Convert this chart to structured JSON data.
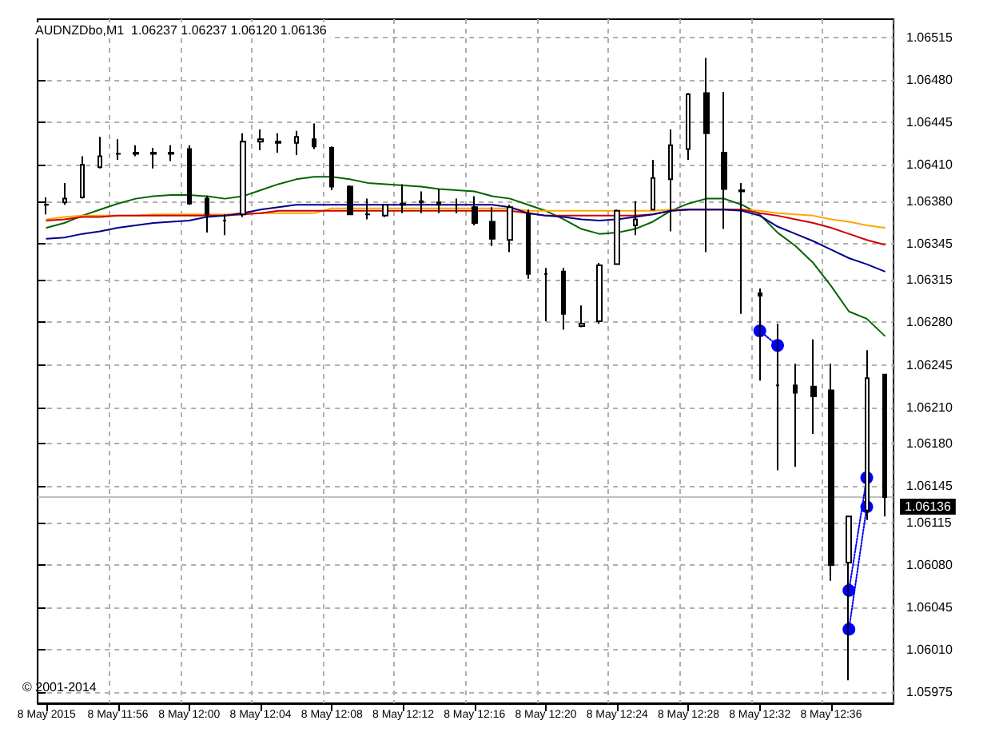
{
  "chart_data": {
    "type": "candlestick",
    "title": "AUDNZDbo,M1  1.06237 1.06237 1.06120 1.06136",
    "annotations": [
      "© 2001-2014"
    ],
    "categories": [
      "8 May 2015",
      null,
      null,
      null,
      "8 May 11:56",
      null,
      null,
      null,
      "8 May 12:00",
      null,
      null,
      null,
      "8 May 12:04",
      null,
      null,
      null,
      "8 May 12:08",
      null,
      null,
      null,
      "8 May 12:12",
      null,
      null,
      null,
      "8 May 12:16",
      null,
      null,
      null,
      "8 May 12:20",
      null,
      null,
      null,
      "8 May 12:24",
      null,
      null,
      null,
      "8 May 12:28",
      null,
      null,
      null,
      "8 May 12:32",
      null,
      null,
      null,
      "8 May 12:36",
      null,
      null,
      null
    ],
    "ohlc": [
      [
        1.06377,
        1.06383,
        1.06369,
        1.06377
      ],
      [
        1.06379,
        1.06395,
        1.06377,
        1.06382
      ],
      [
        1.06383,
        1.06417,
        1.06382,
        1.0641
      ],
      [
        1.06408,
        1.06433,
        1.06407,
        1.06417
      ],
      [
        1.06419,
        1.06431,
        1.06414,
        1.06419
      ],
      [
        1.06419,
        1.06426,
        1.06417,
        1.0642
      ],
      [
        1.06419,
        1.06424,
        1.06407,
        1.0642
      ],
      [
        1.06419,
        1.06426,
        1.06413,
        1.0642
      ],
      [
        1.06423,
        1.06426,
        1.06377,
        1.06378
      ],
      [
        1.06382,
        1.06384,
        1.06354,
        1.06369
      ],
      [
        1.06364,
        1.06369,
        1.06352,
        1.06364
      ],
      [
        1.06369,
        1.06436,
        1.06367,
        1.06429
      ],
      [
        1.06429,
        1.06439,
        1.06422,
        1.06431
      ],
      [
        1.06429,
        1.06436,
        1.0642,
        1.06428
      ],
      [
        1.06428,
        1.06438,
        1.06418,
        1.06433
      ],
      [
        1.06431,
        1.06444,
        1.06423,
        1.06425
      ],
      [
        1.06424,
        1.06425,
        1.06389,
        1.06392
      ],
      [
        1.06392,
        1.06393,
        1.06369,
        1.06369
      ],
      [
        1.06369,
        1.06382,
        1.06365,
        1.06369
      ],
      [
        1.06368,
        1.06377,
        1.06367,
        1.06377
      ],
      [
        1.06377,
        1.06394,
        1.0637,
        1.06378
      ],
      [
        1.06379,
        1.06388,
        1.0637,
        1.0638
      ],
      [
        1.06379,
        1.0639,
        1.0637,
        1.06377
      ],
      [
        1.06377,
        1.06382,
        1.0637,
        1.06377
      ],
      [
        1.06375,
        1.06384,
        1.0636,
        1.06362
      ],
      [
        1.06363,
        1.06375,
        1.06343,
        1.06349
      ],
      [
        1.06348,
        1.06377,
        1.06338,
        1.06375
      ],
      [
        1.0637,
        1.06373,
        1.06316,
        1.0632
      ],
      [
        1.0632,
        1.06325,
        1.06281,
        1.0632
      ],
      [
        1.06322,
        1.06325,
        1.06274,
        1.06287
      ],
      [
        1.06277,
        1.06294,
        1.06276,
        1.06279
      ],
      [
        1.06281,
        1.06329,
        1.06279,
        1.06327
      ],
      [
        1.06328,
        1.06373,
        1.06328,
        1.06372
      ],
      [
        1.0636,
        1.0638,
        1.06352,
        1.06365
      ],
      [
        1.06373,
        1.06414,
        1.06373,
        1.06399
      ],
      [
        1.06398,
        1.06439,
        1.06355,
        1.06426
      ],
      [
        1.06423,
        1.06469,
        1.06414,
        1.06468
      ],
      [
        1.06469,
        1.06498,
        1.06338,
        1.06436
      ],
      [
        1.0642,
        1.0647,
        1.06357,
        1.0639
      ],
      [
        1.06388,
        1.06395,
        1.06287,
        1.06389
      ],
      [
        1.06304,
        1.06308,
        1.06232,
        1.06302
      ],
      [
        1.06228,
        1.06279,
        1.06158,
        1.06228
      ],
      [
        1.06228,
        1.06246,
        1.06161,
        1.06222
      ],
      [
        1.06227,
        1.06266,
        1.06188,
        1.06219
      ],
      [
        1.06224,
        1.06246,
        1.06067,
        1.0608
      ],
      [
        1.06082,
        1.0612,
        1.05985,
        1.0612
      ],
      [
        1.06125,
        1.06257,
        1.06117,
        1.06234
      ],
      [
        1.06237,
        1.06237,
        1.0612,
        1.06136
      ]
    ],
    "series": [
      {
        "type": "line",
        "color": "#006400",
        "values": [
          1.06358,
          1.06362,
          1.06368,
          1.06373,
          1.06378,
          1.06382,
          1.06384,
          1.06385,
          1.06385,
          1.06384,
          1.06382,
          1.06384,
          1.06389,
          1.06394,
          1.06398,
          1.064,
          1.064,
          1.06398,
          1.06395,
          1.06394,
          1.06393,
          1.06392,
          1.0639,
          1.06389,
          1.06388,
          1.06384,
          1.06382,
          1.06377,
          1.06372,
          1.06365,
          1.06357,
          1.06353,
          1.06354,
          1.06357,
          1.06363,
          1.06372,
          1.06378,
          1.06382,
          1.06382,
          1.06377,
          1.06369,
          1.06354,
          1.06343,
          1.06329,
          1.0631,
          1.06289,
          1.06283,
          1.06269
        ]
      },
      {
        "type": "line",
        "color": "#ffa500",
        "values": [
          1.06365,
          1.06367,
          1.06368,
          1.06368,
          1.06368,
          1.06368,
          1.06369,
          1.06369,
          1.06369,
          1.06369,
          1.06369,
          1.0637,
          1.0637,
          1.0637,
          1.0637,
          1.0637,
          1.06374,
          1.06374,
          1.06374,
          1.06374,
          1.06374,
          1.06374,
          1.06374,
          1.06374,
          1.06374,
          1.06374,
          1.06374,
          1.06372,
          1.06372,
          1.06372,
          1.06372,
          1.06372,
          1.06372,
          1.06372,
          1.06372,
          1.06373,
          1.06373,
          1.06373,
          1.06373,
          1.06373,
          1.06372,
          1.0637,
          1.06369,
          1.06368,
          1.06365,
          1.06363,
          1.0636,
          1.06358
        ]
      },
      {
        "type": "line",
        "color": "#cc0000",
        "values": [
          1.06364,
          1.06365,
          1.06367,
          1.06367,
          1.06368,
          1.06368,
          1.06368,
          1.06368,
          1.06368,
          1.06368,
          1.06368,
          1.06369,
          1.0637,
          1.06372,
          1.06372,
          1.06372,
          1.06372,
          1.06372,
          1.06372,
          1.06372,
          1.06372,
          1.06372,
          1.06372,
          1.06372,
          1.06372,
          1.06372,
          1.06372,
          1.0637,
          1.06368,
          1.06368,
          1.06368,
          1.06368,
          1.06368,
          1.06368,
          1.06369,
          1.06372,
          1.06373,
          1.06373,
          1.06373,
          1.06373,
          1.0637,
          1.06368,
          1.06365,
          1.06362,
          1.06358,
          1.06353,
          1.06348,
          1.06344
        ]
      },
      {
        "type": "line",
        "color": "#00008b",
        "values": [
          1.06349,
          1.0635,
          1.06353,
          1.06355,
          1.06358,
          1.0636,
          1.06362,
          1.06363,
          1.06364,
          1.06367,
          1.06368,
          1.0637,
          1.06373,
          1.06375,
          1.06377,
          1.06377,
          1.06377,
          1.06377,
          1.06377,
          1.06377,
          1.06377,
          1.06377,
          1.06377,
          1.06377,
          1.06377,
          1.06377,
          1.06375,
          1.0637,
          1.06368,
          1.06367,
          1.06365,
          1.06364,
          1.06365,
          1.06367,
          1.06369,
          1.06372,
          1.06373,
          1.06373,
          1.06373,
          1.06372,
          1.06368,
          1.06359,
          1.06353,
          1.06347,
          1.0634,
          1.06333,
          1.06328,
          1.06322
        ]
      },
      {
        "type": "line",
        "color": "#0000ff",
        "line_style": "dotted",
        "marker": "circle",
        "values": [
          null,
          null,
          null,
          null,
          null,
          null,
          null,
          null,
          null,
          null,
          null,
          null,
          null,
          null,
          null,
          null,
          null,
          null,
          null,
          null,
          null,
          null,
          null,
          null,
          null,
          null,
          null,
          null,
          null,
          null,
          null,
          null,
          null,
          null,
          null,
          null,
          null,
          null,
          null,
          null,
          1.06273,
          1.06261,
          null,
          null,
          null,
          1.06027,
          1.06128,
          null
        ]
      },
      {
        "type": "line",
        "color": "#0000ff",
        "line_style": "dotted",
        "marker": "circle",
        "values": [
          null,
          null,
          null,
          null,
          null,
          null,
          null,
          null,
          null,
          null,
          null,
          null,
          null,
          null,
          null,
          null,
          null,
          null,
          null,
          null,
          null,
          null,
          null,
          null,
          null,
          null,
          null,
          null,
          null,
          null,
          null,
          null,
          null,
          null,
          null,
          null,
          null,
          null,
          null,
          null,
          null,
          null,
          null,
          null,
          null,
          1.06059,
          1.06152,
          null
        ]
      }
    ],
    "ylim": [
      1.05966,
      1.0653
    ],
    "yticks": [
      1.05975,
      {
        "value": 1.0601,
        "label": "1.06010"
      },
      1.06045,
      {
        "value": 1.0608,
        "label": "1.06080"
      },
      1.06115,
      1.06145,
      {
        "value": 1.0618,
        "label": "1.06180"
      },
      {
        "value": 1.0621,
        "label": "1.06210"
      },
      1.06245,
      {
        "value": 1.0628,
        "label": "1.06280"
      },
      1.06315,
      1.06345,
      {
        "value": 1.0638,
        "label": "1.06380"
      },
      {
        "value": 1.0641,
        "label": "1.06410"
      },
      1.06445,
      {
        "value": 1.0648,
        "label": "1.06480"
      },
      1.06515
    ],
    "ref_lines": [
      {
        "axis": "y",
        "value": 1.06136,
        "label": "1.06136",
        "color": "#c0c0c0"
      }
    ],
    "grid": true
  }
}
